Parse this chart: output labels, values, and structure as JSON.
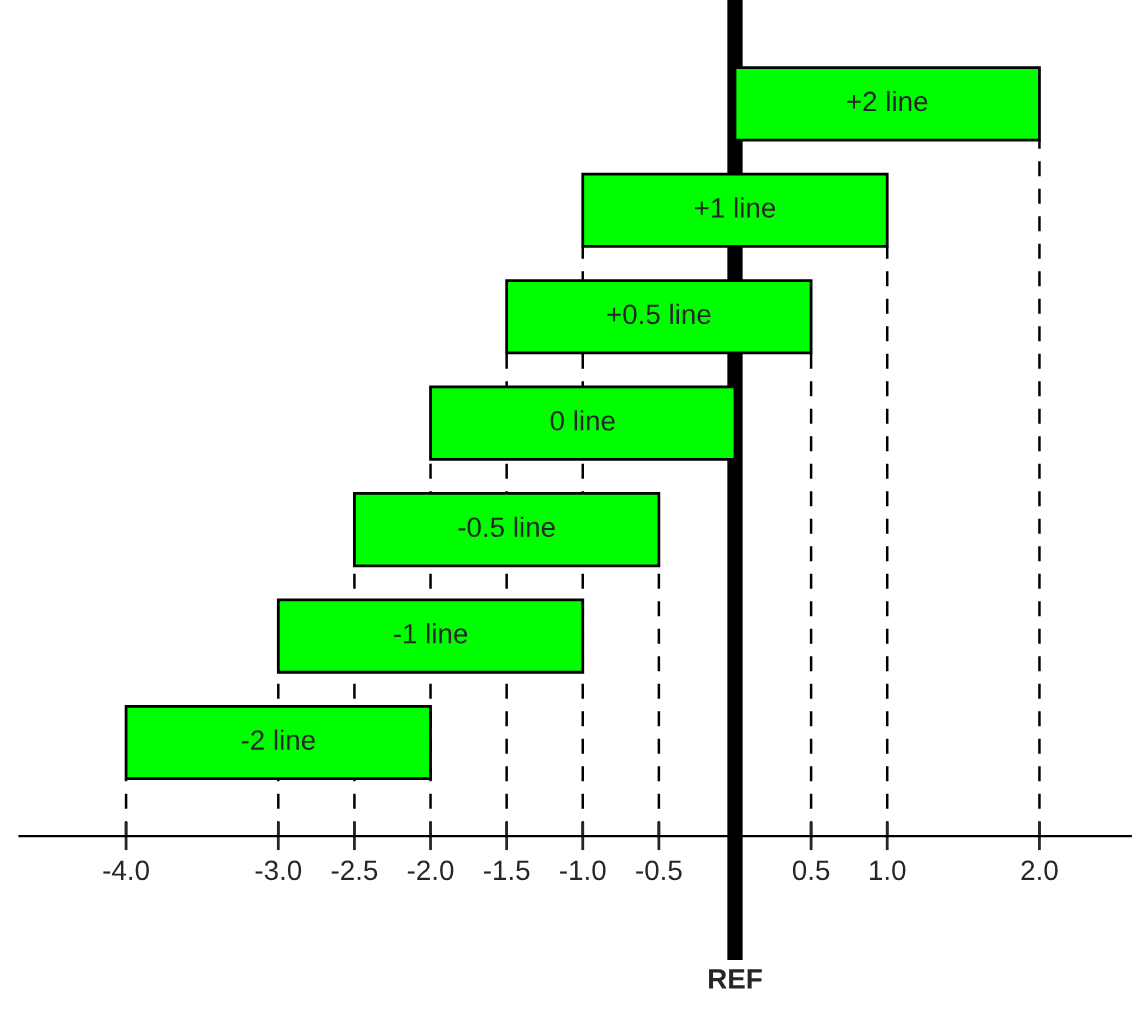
{
  "chart_data": {
    "type": "bar",
    "orientation": "horizontal",
    "categories": [
      "+2 line",
      "+1 line",
      "+0.5 line",
      "0 line",
      "-0.5 line",
      "-1 line",
      "-2 line"
    ],
    "base": [
      0,
      -1.0,
      -1.5,
      -2.0,
      -2.5,
      -3.0,
      -4.0
    ],
    "values": [
      2.0,
      2.0,
      2.0,
      2.0,
      2.0,
      2.0,
      2.0
    ],
    "color": "#00ff00",
    "xlim": [
      -4.7,
      2.6
    ],
    "xticks": [
      {
        "value": -4.0,
        "label": "-4.0"
      },
      {
        "value": -3.0,
        "label": "-3.0"
      },
      {
        "value": -2.5,
        "label": "-2.5"
      },
      {
        "value": -2.0,
        "label": "-2.0"
      },
      {
        "value": -1.5,
        "label": "-1.5"
      },
      {
        "value": -1.0,
        "label": "-1.0"
      },
      {
        "value": -0.5,
        "label": "-0.5"
      },
      {
        "value": 0.5,
        "label": "0.5"
      },
      {
        "value": 1.0,
        "label": "1.0"
      },
      {
        "value": 2.0,
        "label": "2.0"
      }
    ],
    "tick_labels": "x",
    "grid": "x",
    "legend": false,
    "ref_lines": [
      {
        "axis": "x",
        "value": 0,
        "label": "REF",
        "color": "#000000"
      }
    ]
  }
}
